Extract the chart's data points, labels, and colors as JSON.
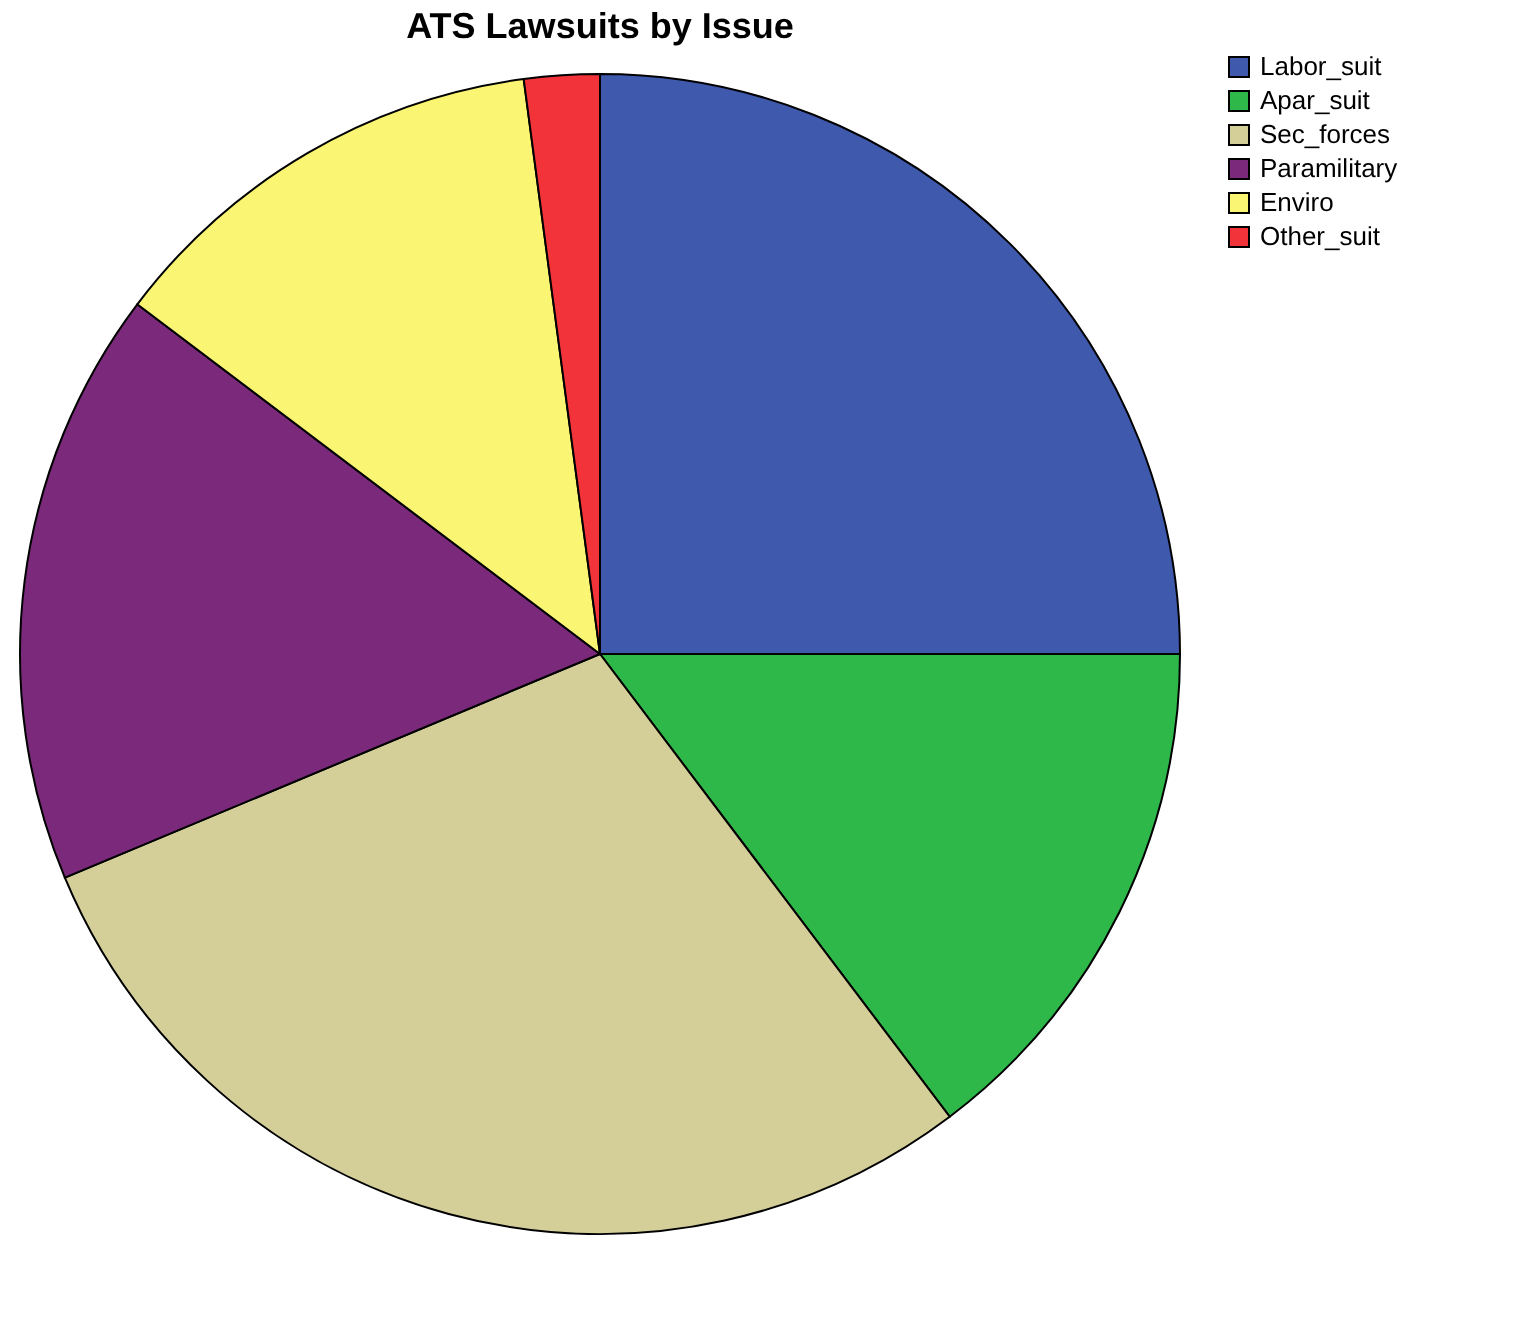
{
  "chart_data": {
    "type": "pie",
    "title": "ATS Lawsuits by Issue",
    "categories": [
      "Labor_suit",
      "Apar_suit",
      "Sec_forces",
      "Paramilitary",
      "Enviro",
      "Other_suit"
    ],
    "values": [
      25,
      14.7,
      29,
      16.6,
      12.6,
      2.1
    ],
    "colors": [
      "#3f59ad",
      "#2fb84a",
      "#d4cf98",
      "#7b2a7b",
      "#faf573",
      "#f2333a"
    ],
    "legend": "top right"
  }
}
